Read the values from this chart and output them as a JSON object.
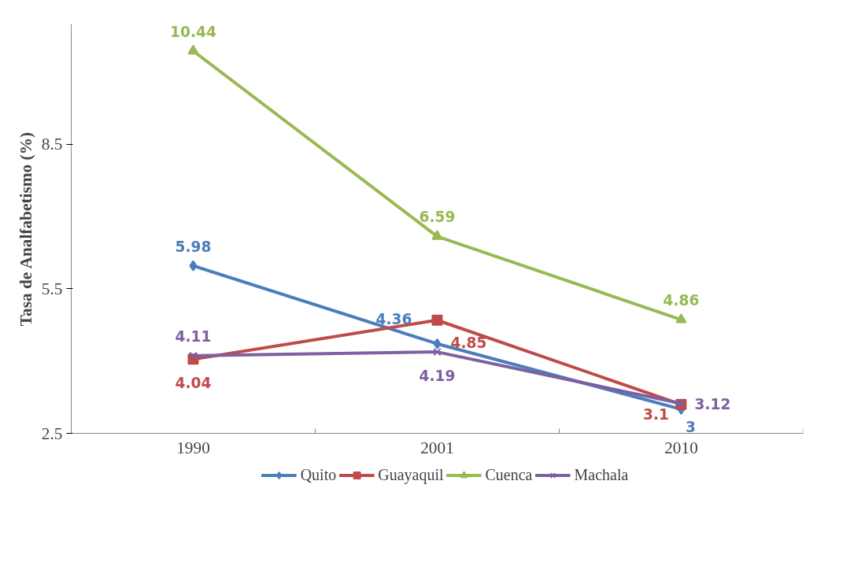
{
  "chart_data": {
    "type": "line",
    "ylabel": "Tasa de Analfabetismo (%)",
    "categories": [
      "1990",
      "2001",
      "2010"
    ],
    "ylim": [
      2.5,
      11
    ],
    "yticks": [
      2.5,
      5.5,
      8.5
    ],
    "grid": false,
    "legend": "bottom",
    "data_labels": true,
    "series": [
      {
        "name": "Quito",
        "color": "#4a7ebb",
        "marker": "diamond",
        "values": [
          5.98,
          4.36,
          3
        ]
      },
      {
        "name": "Guayaquil",
        "color": "#be4b48",
        "marker": "square",
        "values": [
          4.04,
          4.85,
          3.1
        ]
      },
      {
        "name": "Cuenca",
        "color": "#98b954",
        "marker": "triangle",
        "values": [
          10.44,
          6.59,
          4.86
        ]
      },
      {
        "name": "Machala",
        "color": "#7d60a0",
        "marker": "cross",
        "values": [
          4.11,
          4.19,
          3.12
        ]
      }
    ]
  }
}
